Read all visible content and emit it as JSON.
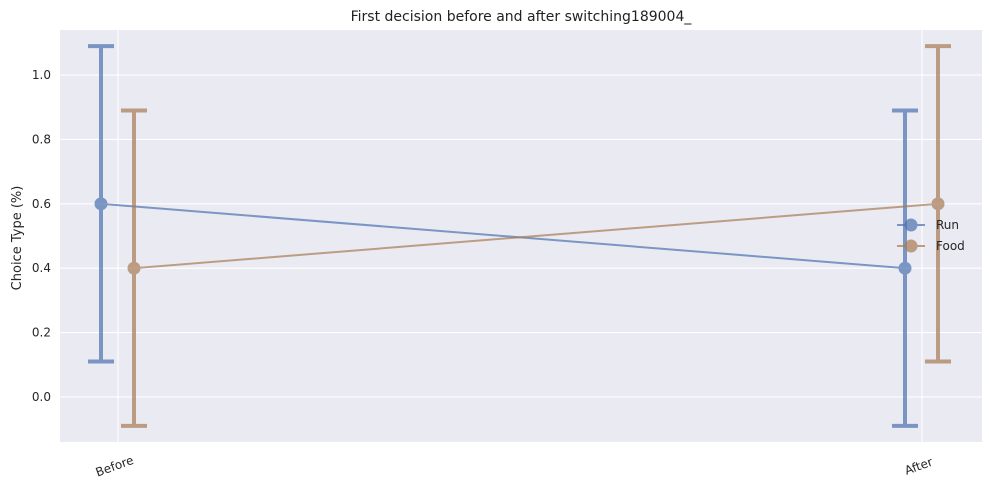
{
  "chart_data": {
    "type": "line",
    "title": "First decision before and after switching189004_",
    "xlabel": "",
    "ylabel": "Choice Type (%)",
    "categories": [
      "Before",
      "After"
    ],
    "ylim": [
      -0.14,
      1.14
    ],
    "yticks": [
      0.0,
      0.2,
      0.4,
      0.6,
      0.8,
      1.0
    ],
    "ytick_labels": [
      "0.0",
      "0.2",
      "0.4",
      "0.6",
      "0.8",
      "1.0"
    ],
    "grid": true,
    "legend_position": "right",
    "series": [
      {
        "name": "Run",
        "color": "#4c72b0",
        "values": [
          0.6,
          0.4
        ],
        "error_low": [
          0.11,
          -0.09
        ],
        "error_high": [
          1.09,
          0.89
        ]
      },
      {
        "name": "Food",
        "color": "#a87c55",
        "values": [
          0.4,
          0.6
        ],
        "error_low": [
          -0.09,
          0.11
        ],
        "error_high": [
          0.89,
          1.09
        ]
      }
    ]
  }
}
